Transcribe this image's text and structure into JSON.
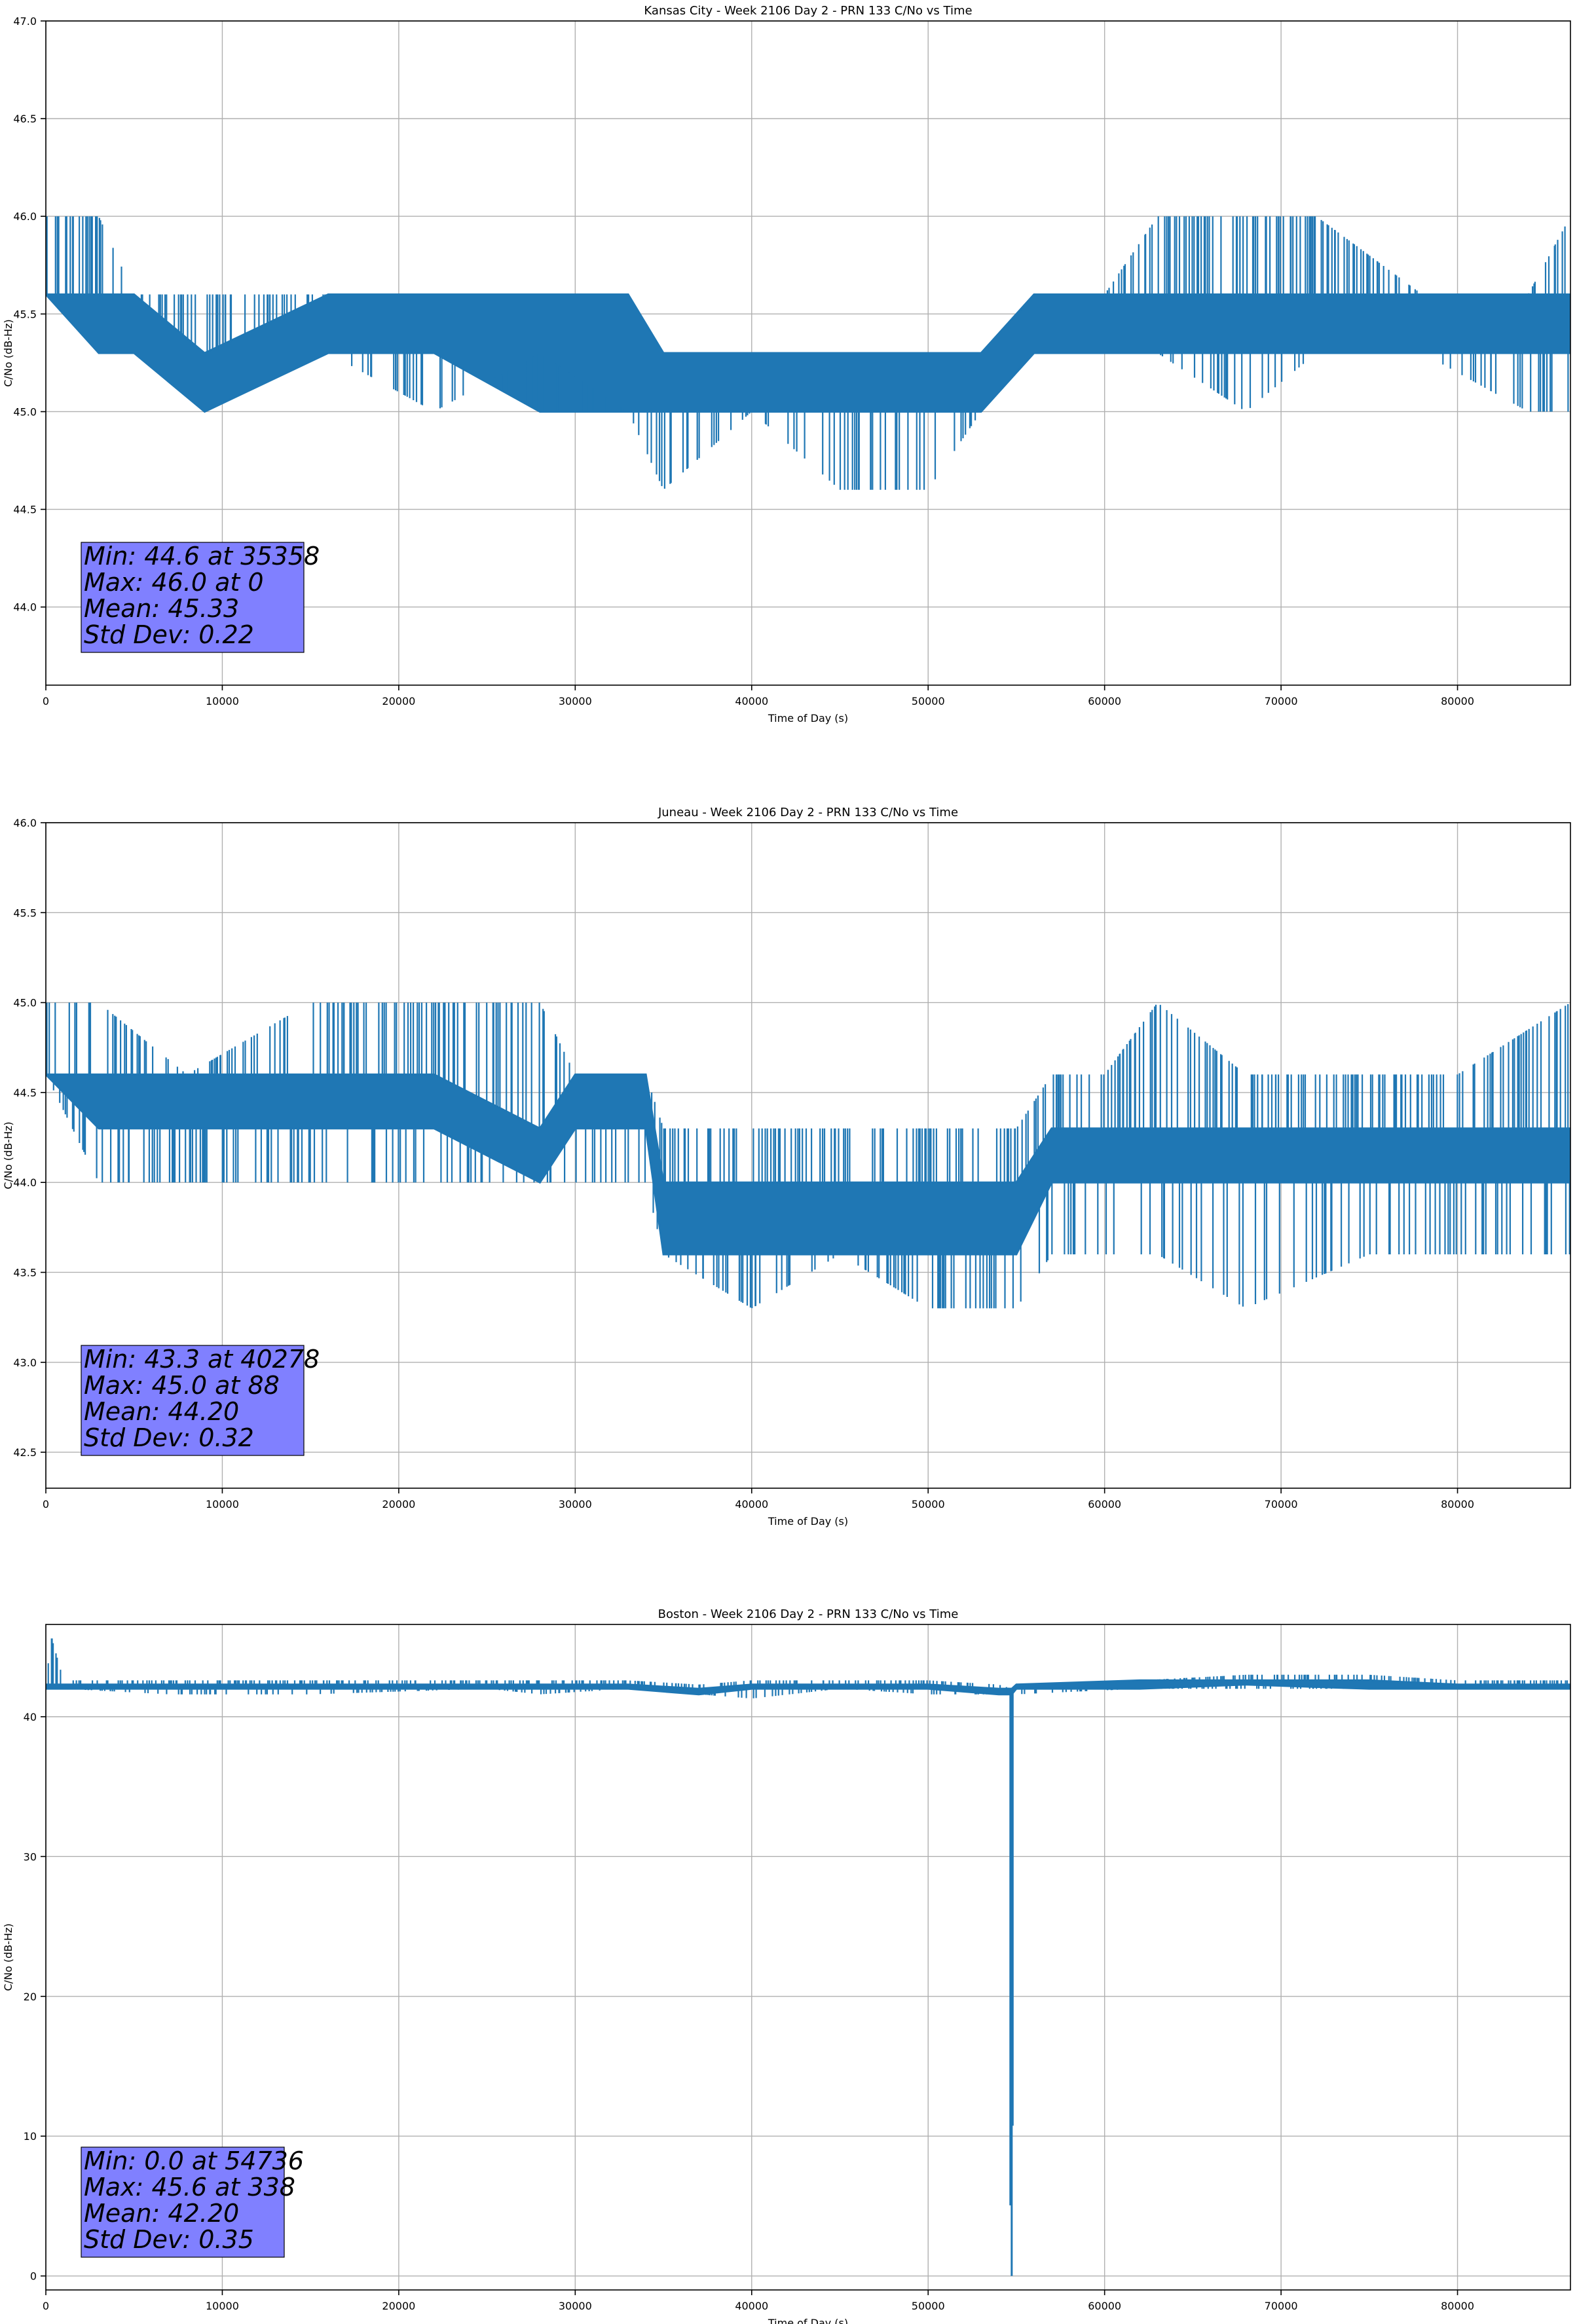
{
  "chart_data": [
    {
      "type": "line",
      "title": "Kansas City - Week 2106 Day 2 - PRN 133 C/No vs Time",
      "xlabel": "Time of Day (s)",
      "ylabel": "C/No (dB-Hz)",
      "xlim": [
        0,
        86400
      ],
      "ylim": [
        43.6,
        47.0
      ],
      "xticks": [
        0,
        10000,
        20000,
        30000,
        40000,
        50000,
        60000,
        70000,
        80000
      ],
      "yticks": [
        44.0,
        44.5,
        45.0,
        45.5,
        46.0,
        46.5,
        47.0
      ],
      "ytick_decimals": 1,
      "grid": true,
      "line_color": "#1f77b4",
      "series": [
        {
          "x": [
            0,
            3000,
            5000,
            9000,
            16000,
            22000,
            28000,
            33000,
            35000,
            40000,
            45000,
            50000,
            53000,
            56000,
            60000,
            63000,
            68000,
            72000,
            78000,
            84000,
            86400
          ],
          "high": [
            46.0,
            46.0,
            45.6,
            45.6,
            45.6,
            45.6,
            45.6,
            45.6,
            45.3,
            45.3,
            45.3,
            45.3,
            45.3,
            45.6,
            45.6,
            46.0,
            46.0,
            46.0,
            45.6,
            45.6,
            46.0
          ],
          "low": [
            45.6,
            45.3,
            45.3,
            45.0,
            45.3,
            45.0,
            45.3,
            45.0,
            44.6,
            45.0,
            44.6,
            44.6,
            45.0,
            45.3,
            45.3,
            45.3,
            45.0,
            45.3,
            45.3,
            45.0,
            45.0
          ],
          "band_high": [
            45.6,
            45.6,
            45.6,
            45.3,
            45.6,
            45.6,
            45.6,
            45.6,
            45.3,
            45.3,
            45.3,
            45.3,
            45.3,
            45.6,
            45.6,
            45.6,
            45.6,
            45.6,
            45.6,
            45.6,
            45.6
          ],
          "band_low": [
            45.6,
            45.3,
            45.3,
            45.0,
            45.3,
            45.3,
            45.0,
            45.0,
            45.0,
            45.0,
            45.0,
            45.0,
            45.0,
            45.3,
            45.3,
            45.3,
            45.3,
            45.3,
            45.3,
            45.3,
            45.3
          ]
        }
      ],
      "annotation": [
        "Min: 44.6 at 35358",
        "Max: 46.0 at 0",
        "Mean: 45.33",
        "Std Dev: 0.22"
      ],
      "annotation_bg": "#8080ff"
    },
    {
      "type": "line",
      "title": "Juneau - Week 2106 Day 2 - PRN 133 C/No vs Time",
      "xlabel": "Time of Day (s)",
      "ylabel": "C/No (dB-Hz)",
      "xlim": [
        0,
        86400
      ],
      "ylim": [
        42.3,
        46.0
      ],
      "xticks": [
        0,
        10000,
        20000,
        30000,
        40000,
        50000,
        60000,
        70000,
        80000
      ],
      "yticks": [
        42.5,
        43.0,
        43.5,
        44.0,
        44.5,
        45.0,
        45.5,
        46.0
      ],
      "ytick_decimals": 1,
      "grid": true,
      "line_color": "#1f77b4",
      "series": [
        {
          "x": [
            0,
            3000,
            8000,
            15000,
            22000,
            28000,
            30000,
            34000,
            35000,
            40000,
            45000,
            50000,
            55000,
            57000,
            60000,
            63000,
            68000,
            75000,
            80000,
            86400
          ],
          "high": [
            45.0,
            45.0,
            44.6,
            45.0,
            45.0,
            45.0,
            44.6,
            44.6,
            44.3,
            44.3,
            44.3,
            44.3,
            44.3,
            44.6,
            44.6,
            45.0,
            44.6,
            44.6,
            44.6,
            45.0
          ],
          "low": [
            44.6,
            44.0,
            44.0,
            44.0,
            44.0,
            44.0,
            44.0,
            44.0,
            43.6,
            43.3,
            43.6,
            43.3,
            43.3,
            43.6,
            43.6,
            43.6,
            43.3,
            43.6,
            43.6,
            43.6
          ],
          "band_high": [
            44.6,
            44.6,
            44.6,
            44.6,
            44.6,
            44.3,
            44.6,
            44.6,
            44.0,
            44.0,
            44.0,
            44.0,
            44.0,
            44.3,
            44.3,
            44.3,
            44.3,
            44.3,
            44.3,
            44.3
          ],
          "band_low": [
            44.6,
            44.3,
            44.3,
            44.3,
            44.3,
            44.0,
            44.3,
            44.3,
            43.6,
            43.6,
            43.6,
            43.6,
            43.6,
            44.0,
            44.0,
            44.0,
            44.0,
            44.0,
            44.0,
            44.0
          ]
        }
      ],
      "annotation": [
        "Min: 43.3 at 40278",
        "Max: 45.0 at 88",
        "Mean: 44.20",
        "Std Dev: 0.32"
      ],
      "annotation_bg": "#8080ff"
    },
    {
      "type": "line",
      "title": "Boston - Week 2106 Day 2 - PRN 133 C/No vs Time",
      "xlabel": "Time of Day (s)",
      "ylabel": "C/No (dB-Hz)",
      "xlim": [
        0,
        86400
      ],
      "ylim": [
        -1,
        46.6
      ],
      "xticks": [
        0,
        10000,
        20000,
        30000,
        40000,
        50000,
        60000,
        70000,
        80000
      ],
      "yticks": [
        0,
        10,
        20,
        30,
        40
      ],
      "ytick_decimals": 0,
      "grid": true,
      "line_color": "#1f77b4",
      "series": [
        {
          "x": [
            0,
            338,
            1000,
            7000,
            15000,
            25000,
            28000,
            33000,
            37000,
            40000,
            45000,
            50000,
            54000,
            54736,
            55000,
            62000,
            68000,
            75000,
            80000,
            86400
          ],
          "high": [
            42.6,
            45.6,
            42.6,
            42.6,
            42.6,
            42.6,
            42.6,
            42.6,
            42.3,
            42.6,
            42.6,
            42.6,
            42.3,
            42.0,
            42.3,
            42.6,
            43.0,
            43.0,
            42.6,
            42.6
          ],
          "low": [
            42.0,
            42.0,
            42.0,
            41.6,
            41.6,
            42.0,
            41.6,
            42.0,
            41.6,
            41.3,
            42.0,
            41.6,
            41.6,
            0.0,
            41.6,
            42.0,
            42.0,
            42.0,
            42.0,
            42.0
          ],
          "band_high": [
            42.3,
            42.3,
            42.3,
            42.3,
            42.3,
            42.3,
            42.3,
            42.3,
            42.0,
            42.3,
            42.3,
            42.3,
            42.0,
            42.0,
            42.3,
            42.6,
            42.6,
            42.6,
            42.3,
            42.3
          ],
          "band_low": [
            42.0,
            42.0,
            42.0,
            42.0,
            42.0,
            42.0,
            42.0,
            42.0,
            41.6,
            42.0,
            42.0,
            42.0,
            41.6,
            41.6,
            42.0,
            42.0,
            42.3,
            42.0,
            42.0,
            42.0
          ]
        }
      ],
      "annotation": [
        "Min: 0.0 at 54736",
        "Max: 45.6 at 338",
        "Mean: 42.20",
        "Std Dev: 0.35"
      ],
      "annotation_bg": "#8080ff"
    }
  ]
}
